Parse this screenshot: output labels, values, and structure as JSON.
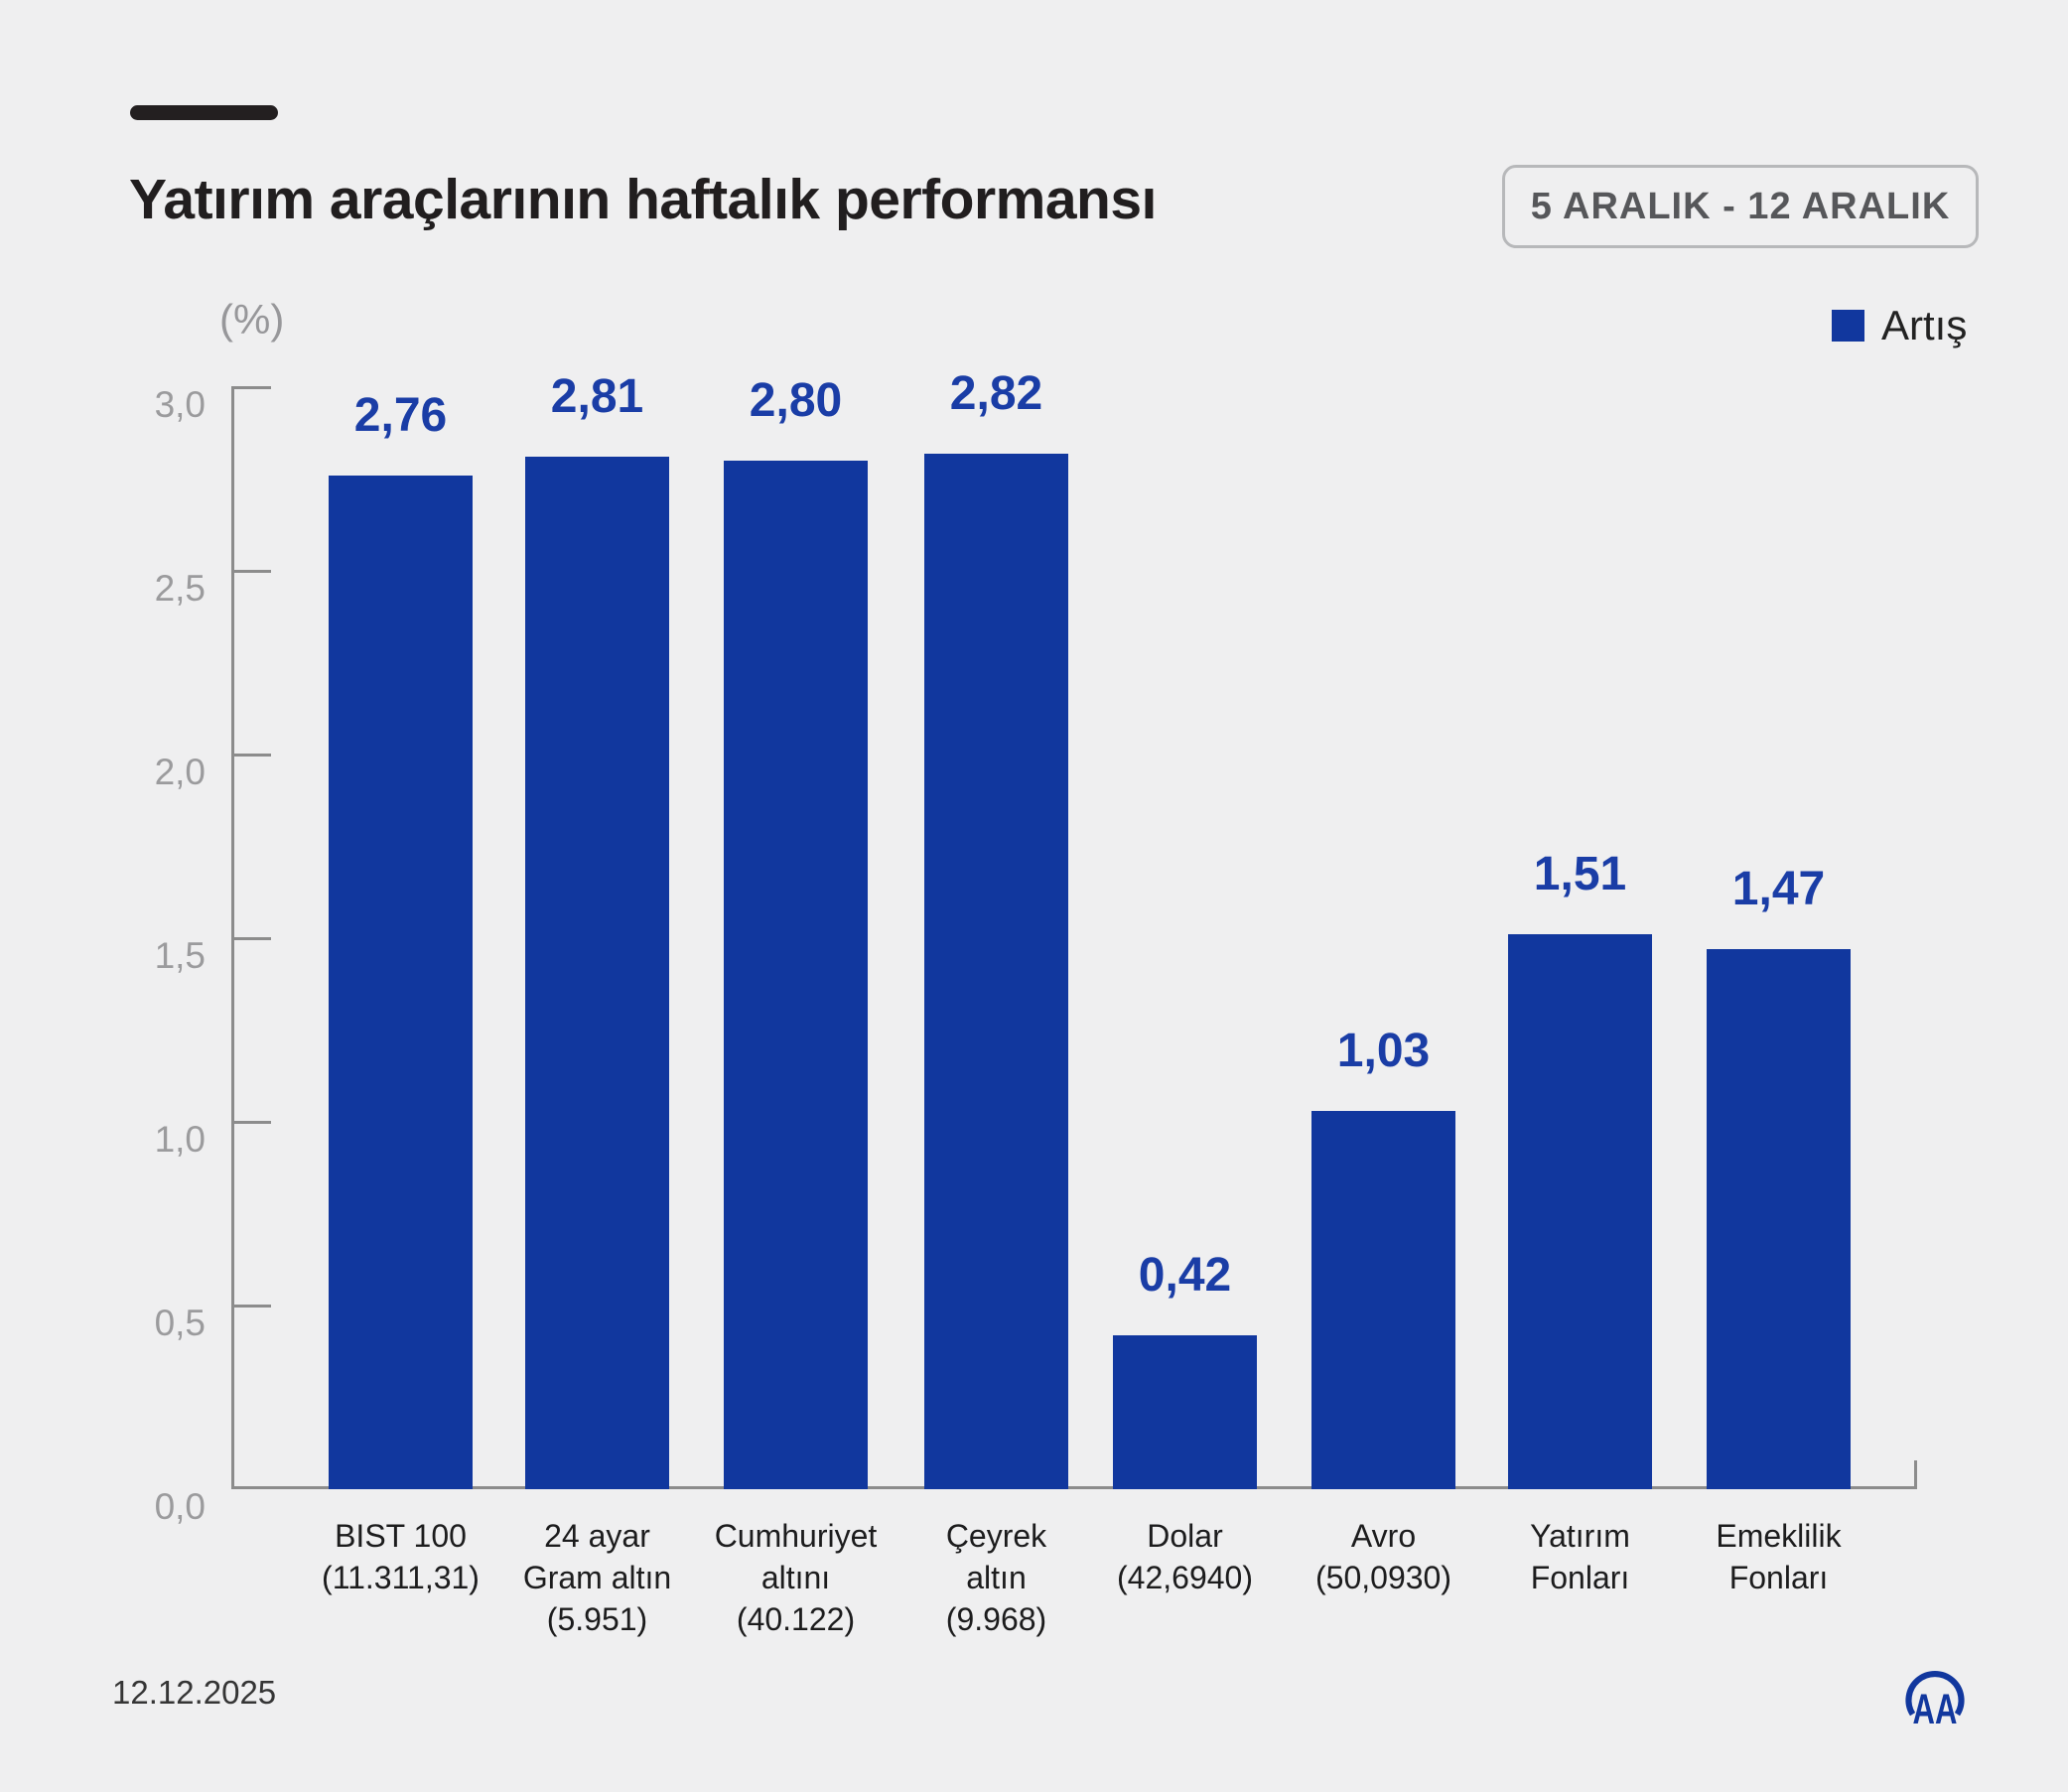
{
  "page": {
    "background": "#efeff0"
  },
  "header": {
    "title": "Yatırım araçlarının haftalık performansı",
    "period_badge": "5 ARALIK - 12 ARALIK"
  },
  "legend": {
    "label": "Artış",
    "color": "#11379e"
  },
  "chart_data": {
    "type": "bar",
    "title": "Yatırım araçlarının haftalık performansı",
    "unit_label": "(%)",
    "ylim": [
      0,
      3.0
    ],
    "grid": false,
    "legend_position": "top-right",
    "y_ticks": [
      {
        "value": 3.0,
        "label": "3,0"
      },
      {
        "value": 2.5,
        "label": "2,5"
      },
      {
        "value": 2.0,
        "label": "2,0"
      },
      {
        "value": 1.5,
        "label": "1,5"
      },
      {
        "value": 1.0,
        "label": "1,0"
      },
      {
        "value": 0.5,
        "label": "0,5"
      },
      {
        "value": 0.0,
        "label": "0,0"
      }
    ],
    "series_name": "Artış",
    "bar_color": "#11379e",
    "value_label_color": "#1a3da6",
    "bars": [
      {
        "name_lines": [
          "BIST 100"
        ],
        "current_value": "(11.311,31)",
        "value": 2.76,
        "value_label": "2,76"
      },
      {
        "name_lines": [
          "24 ayar",
          "Gram altın"
        ],
        "current_value": "(5.951)",
        "value": 2.81,
        "value_label": "2,81"
      },
      {
        "name_lines": [
          "Cumhuriyet",
          "altını"
        ],
        "current_value": "(40.122)",
        "value": 2.8,
        "value_label": "2,80"
      },
      {
        "name_lines": [
          "Çeyrek",
          "altın"
        ],
        "current_value": "(9.968)",
        "value": 2.82,
        "value_label": "2,82"
      },
      {
        "name_lines": [
          "Dolar"
        ],
        "current_value": "(42,6940)",
        "value": 0.42,
        "value_label": "0,42"
      },
      {
        "name_lines": [
          "Avro"
        ],
        "current_value": "(50,0930)",
        "value": 1.03,
        "value_label": "1,03"
      },
      {
        "name_lines": [
          "Yatırım",
          "Fonları"
        ],
        "current_value": "",
        "value": 1.51,
        "value_label": "1,51"
      },
      {
        "name_lines": [
          "Emeklilik",
          "Fonları"
        ],
        "current_value": "",
        "value": 1.47,
        "value_label": "1,47"
      }
    ]
  },
  "footer": {
    "date": "12.12.2025",
    "logo_text": "AA"
  }
}
